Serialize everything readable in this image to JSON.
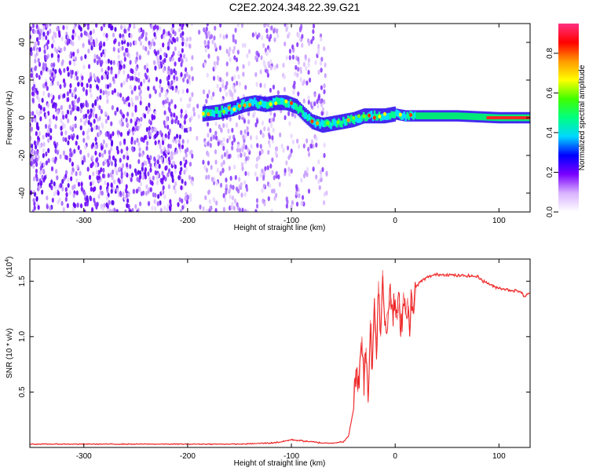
{
  "title": "C2E2.2024.348.22.39.G21",
  "chart_data": [
    {
      "type": "heatmap",
      "xlabel": "Height of straight line (km)",
      "ylabel": "Frequency (Hz)",
      "xlim": [
        -352,
        130
      ],
      "ylim": [
        -50,
        50
      ],
      "xticks": [
        -300,
        -200,
        -100,
        0,
        100
      ],
      "yticks": [
        -40,
        -20,
        0,
        20,
        40
      ],
      "colorbar": {
        "label": "Normalized spectral amplitude",
        "range": [
          0.0,
          0.95
        ],
        "ticks": [
          0.0,
          0.2,
          0.4,
          0.6,
          0.8
        ],
        "tick_labels": [
          "0.0",
          "0.2",
          "0.4",
          "0.6",
          "0.8"
        ],
        "colors": [
          "#ffffff",
          "#d9b3ff",
          "#7a00ff",
          "#0000ff",
          "#00d8ff",
          "#00ff80",
          "#40ff00",
          "#ffff00",
          "#ff9900",
          "#ff0000",
          "#ff3080"
        ]
      },
      "ridge": {
        "x": [
          -185,
          -170,
          -155,
          -145,
          -135,
          -125,
          -115,
          -105,
          -95,
          -88,
          -80,
          -70,
          -60,
          -50,
          -40,
          -30,
          -20,
          -10,
          0,
          10,
          20,
          40,
          60,
          80,
          100,
          130
        ],
        "frequency": [
          2,
          3,
          5,
          7,
          8,
          7,
          8,
          8,
          6,
          2,
          -2,
          -4,
          -3,
          -2,
          -1,
          1,
          1,
          1,
          2,
          1,
          1,
          1,
          1,
          0.5,
          0,
          0
        ]
      },
      "noise_region": {
        "x_from": -352,
        "x_to": -65,
        "gaps": [
          [
            -195,
            -185
          ],
          [
            -140,
            -135
          ],
          [
            -112,
            -108
          ]
        ]
      }
    },
    {
      "type": "line",
      "xlabel": "Height of straight line (km)",
      "ylabel": "SNR (10 * v/v)",
      "y_multiplier": "(x10",
      "y_multiplier_exp": "4",
      "y_multiplier_close": ")",
      "xlim": [
        -352,
        130
      ],
      "ylim": [
        0,
        1.7
      ],
      "xticks": [
        -300,
        -200,
        -100,
        0,
        100
      ],
      "yticks": [
        0.5,
        1.0,
        1.5
      ],
      "ytick_labels": [
        "0.5",
        "1.0",
        "1.5"
      ],
      "color": "#ee2222",
      "series": [
        {
          "x": [
            -352,
            -300,
            -250,
            -200,
            -150,
            -120,
            -110,
            -100,
            -90,
            -80,
            -70,
            -60,
            -50,
            -45,
            -40,
            -38,
            -36,
            -34,
            -32,
            -30,
            -28,
            -26,
            -24,
            -22,
            -20,
            -18,
            -16,
            -14,
            -12,
            -10,
            -8,
            -6,
            -4,
            -2,
            0,
            2,
            4,
            6,
            8,
            10,
            12,
            14,
            16,
            18,
            20,
            25,
            30,
            35,
            40,
            50,
            60,
            70,
            80,
            85,
            90,
            95,
            100,
            110,
            120,
            125,
            130
          ],
          "values": [
            0.03,
            0.03,
            0.03,
            0.03,
            0.03,
            0.04,
            0.05,
            0.07,
            0.06,
            0.05,
            0.04,
            0.04,
            0.05,
            0.1,
            0.35,
            0.7,
            0.5,
            0.8,
            1.0,
            0.6,
            0.9,
            0.4,
            1.15,
            0.7,
            1.3,
            0.9,
            1.5,
            1.0,
            1.6,
            1.1,
            1.2,
            1.25,
            1.35,
            1.2,
            1.3,
            1.15,
            1.3,
            1.1,
            1.4,
            1.2,
            1.35,
            1.0,
            1.4,
            1.2,
            1.45,
            1.5,
            1.53,
            1.55,
            1.56,
            1.56,
            1.55,
            1.55,
            1.54,
            1.5,
            1.48,
            1.45,
            1.44,
            1.42,
            1.41,
            1.36,
            1.4
          ]
        }
      ]
    }
  ]
}
